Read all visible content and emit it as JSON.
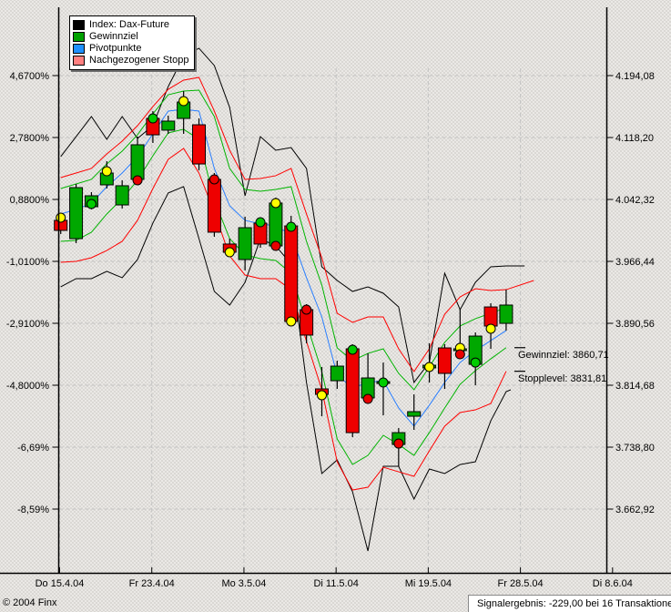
{
  "legend": {
    "items": [
      {
        "label": "Index: Dax-Future",
        "color": "#000000"
      },
      {
        "label": "Gewinnziel",
        "color": "#00a000"
      },
      {
        "label": "Pivotpunkte",
        "color": "#1e90ff"
      },
      {
        "label": "Nachgezogener Stopp",
        "color": "#ff8080"
      }
    ]
  },
  "annotations": [
    {
      "text": "Gewinnziel: 3860,71",
      "value": 3860.71
    },
    {
      "text": "Stopplevel: 3831,81",
      "value": 3831.81
    }
  ],
  "status": {
    "copyright": "© 2004 Finx",
    "signal_result": "Signalergebnis: -229,00 bei 16 Transaktionen"
  },
  "colors": {
    "candle_up": "#00a800",
    "candle_down": "#ee0000",
    "index_line": "#000000",
    "target_line": "#00b400",
    "pivot_line": "#2a7fff",
    "stop_line": "#ff0000",
    "signal_yellow": "#ffff00",
    "signal_green": "#00cc00",
    "signal_red": "#e80000",
    "grid": "#c3c3c3",
    "axis": "#000000"
  },
  "chart_data": {
    "type": "candlestick+line-bands",
    "x_ticks": [
      {
        "label": "Do 15.4.04",
        "day": 0
      },
      {
        "label": "Fr 23.4.04",
        "day": 6
      },
      {
        "label": "Mo 3.5.04",
        "day": 12
      },
      {
        "label": "Di 11.5.04",
        "day": 18
      },
      {
        "label": "Mi 19.5.04",
        "day": 24
      },
      {
        "label": "Fr 28.5.04",
        "day": 30
      },
      {
        "label": "Di 8.6.04",
        "day": 36
      }
    ],
    "y_ticks": [
      {
        "pct": "4,6700%",
        "price": "4.194,08",
        "value": 4194.08
      },
      {
        "pct": "2,7800%",
        "price": "4.118,20",
        "value": 4118.2
      },
      {
        "pct": "0,8800%",
        "price": "4.042,32",
        "value": 4042.32
      },
      {
        "pct": "-1,0100%",
        "price": "3.966,44",
        "value": 3966.44
      },
      {
        "pct": "-2,9100%",
        "price": "3.890,56",
        "value": 3890.56
      },
      {
        "pct": "-4,8000%",
        "price": "3.814,68",
        "value": 3814.68
      },
      {
        "pct": "-6,69%",
        "price": "3.738,80",
        "value": 3738.8
      },
      {
        "pct": "-8,59%",
        "price": "3.662,92",
        "value": 3662.92
      }
    ],
    "ylim": [
      3584,
      4276
    ],
    "candles": [
      [
        4016.7,
        4023.3,
        4000.0,
        4004.4
      ],
      [
        3994.3,
        4061.3,
        3988.8,
        4056.8
      ],
      [
        4033.4,
        4051.3,
        4030.1,
        4046.8
      ],
      [
        4060.2,
        4089.2,
        4055.7,
        4074.7
      ],
      [
        4035.6,
        4065.8,
        4031.2,
        4059.1
      ],
      [
        4066.9,
        4119.4,
        4064.7,
        4109.3
      ],
      [
        4141.6,
        4150.6,
        4111.5,
        4121.5
      ],
      [
        4127.2,
        4145.0,
        4122.7,
        4138.3
      ],
      [
        4141.6,
        4175.1,
        4122.7,
        4161.7
      ],
      [
        4133.8,
        4141.6,
        4078.0,
        4085.8
      ],
      [
        4066.9,
        4074.7,
        3996.6,
        4002.2
      ],
      [
        3987.7,
        3994.3,
        3972.0,
        3977.6
      ],
      [
        3968.7,
        4021.1,
        3955.3,
        4007.7
      ],
      [
        4013.3,
        4018.9,
        3983.2,
        3987.7
      ],
      [
        3985.4,
        4044.6,
        3980.9,
        4037.9
      ],
      [
        4009.9,
        4022.2,
        3888.3,
        3892.8
      ],
      [
        3907.3,
        3914.0,
        3866.0,
        3876.1
      ],
      [
        3810.2,
        3837.0,
        3776.7,
        3803.5
      ],
      [
        3820.2,
        3844.8,
        3810.2,
        3838.1
      ],
      [
        3859.3,
        3864.9,
        3751.0,
        3756.6
      ],
      [
        3799.1,
        3853.7,
        3792.4,
        3823.6
      ],
      [
        3816.9,
        3842.5,
        3777.8,
        3819.1
      ],
      [
        3742.1,
        3762.2,
        3715.3,
        3756.6
      ],
      [
        3776.7,
        3803.5,
        3760.0,
        3782.3
      ],
      [
        3835.9,
        3866.0,
        3818.0,
        3839.2
      ],
      [
        3860.4,
        3864.9,
        3810.2,
        3829.2
      ],
      [
        3857.1,
        3907.3,
        3849.3,
        3859.3
      ],
      [
        3840.3,
        3879.4,
        3814.7,
        3874.9
      ],
      [
        3910.6,
        3915.1,
        3859.3,
        3887.2
      ],
      [
        3890.5,
        3931.9,
        3881.6,
        3912.9
      ]
    ],
    "signals": [
      [
        0,
        4020.0,
        "yellow"
      ],
      [
        2,
        4036.8,
        "green"
      ],
      [
        3,
        4076.9,
        "yellow"
      ],
      [
        5,
        4065.8,
        "red"
      ],
      [
        6,
        4141.6,
        "green"
      ],
      [
        8,
        4162.8,
        "yellow"
      ],
      [
        10,
        4066.9,
        "red"
      ],
      [
        11,
        3977.6,
        "yellow"
      ],
      [
        13,
        4014.4,
        "green"
      ],
      [
        14,
        4037.9,
        "yellow"
      ],
      [
        14,
        3985.4,
        "red"
      ],
      [
        15,
        4008.8,
        "green"
      ],
      [
        15,
        3892.8,
        "yellow"
      ],
      [
        16,
        3907.3,
        "red"
      ],
      [
        17,
        3802.4,
        "yellow"
      ],
      [
        19,
        3858.2,
        "green"
      ],
      [
        20,
        3797.9,
        "red"
      ],
      [
        21,
        3818.0,
        "green"
      ],
      [
        22,
        3743.2,
        "red"
      ],
      [
        24,
        3837.0,
        "yellow"
      ],
      [
        26,
        3860.4,
        "yellow"
      ],
      [
        26,
        3852.6,
        "red"
      ],
      [
        27,
        3842.5,
        "green"
      ],
      [
        28,
        3883.9,
        "yellow"
      ]
    ],
    "series": {
      "index_high": [
        [
          0,
          4094.8
        ],
        [
          1,
          4119.3
        ],
        [
          2,
          4143.9
        ],
        [
          3,
          4116.0
        ],
        [
          4,
          4143.9
        ],
        [
          5,
          4117.1
        ],
        [
          6,
          4132.7
        ],
        [
          7,
          4180.7
        ],
        [
          8,
          4217.5
        ],
        [
          9,
          4227.6
        ],
        [
          10,
          4206.4
        ],
        [
          11,
          4155.0
        ],
        [
          12,
          4046.8
        ],
        [
          13,
          4119.3
        ],
        [
          14,
          4102.6
        ],
        [
          15,
          4105.9
        ],
        [
          16,
          4080.3
        ],
        [
          17,
          3959.8
        ],
        [
          18,
          3943.0
        ],
        [
          19,
          3929.6
        ],
        [
          20,
          3935.2
        ],
        [
          21,
          3927.4
        ],
        [
          22,
          3910.7
        ],
        [
          23,
          3818.1
        ],
        [
          24,
          3842.6
        ],
        [
          25,
          3951.9
        ],
        [
          26,
          3907.3
        ],
        [
          27,
          3940.8
        ],
        [
          28,
          3959.8
        ],
        [
          29,
          3960.9
        ],
        [
          30.2,
          3960.9
        ]
      ],
      "index_low": [
        [
          0,
          3935.2
        ],
        [
          1,
          3945.3
        ],
        [
          2,
          3945.3
        ],
        [
          3,
          3954.2
        ],
        [
          4,
          3946.4
        ],
        [
          5,
          3968.7
        ],
        [
          6,
          4013.4
        ],
        [
          7,
          4050.2
        ],
        [
          8,
          4058.0
        ],
        [
          9,
          3994.3
        ],
        [
          10,
          3929.6
        ],
        [
          11,
          3912.9
        ],
        [
          12,
          3940.8
        ],
        [
          13,
          3994.3
        ],
        [
          14,
          3985.4
        ],
        [
          15,
          3963.2
        ],
        [
          16,
          3818.1
        ],
        [
          17,
          3706.5
        ],
        [
          18,
          3723.2
        ],
        [
          19,
          3684.1
        ],
        [
          20,
          3611.6
        ],
        [
          21,
          3715.3
        ],
        [
          22,
          3715.3
        ],
        [
          23,
          3675.2
        ],
        [
          24,
          3712.0
        ],
        [
          25,
          3706.5
        ],
        [
          26,
          3717.5
        ],
        [
          27,
          3720.9
        ],
        [
          28,
          3771.1
        ],
        [
          29,
          3806.9
        ],
        [
          29.3,
          3809.1
        ]
      ],
      "stop_upper": [
        [
          0,
          4069.1
        ],
        [
          1,
          4074.7
        ],
        [
          2,
          4080.3
        ],
        [
          3,
          4098.1
        ],
        [
          4,
          4113.7
        ],
        [
          5,
          4132.7
        ],
        [
          6,
          4156.1
        ],
        [
          7,
          4177.3
        ],
        [
          8,
          4188.5
        ],
        [
          9,
          4191.9
        ],
        [
          10,
          4150.6
        ],
        [
          11,
          4102.6
        ],
        [
          12,
          4066.9
        ],
        [
          13,
          4068.0
        ],
        [
          14,
          4071.4
        ],
        [
          15,
          4080.3
        ],
        [
          16,
          4024.5
        ],
        [
          17,
          3970.9
        ],
        [
          18,
          3902.8
        ],
        [
          19,
          3891.7
        ],
        [
          20,
          3898.4
        ],
        [
          21,
          3898.4
        ],
        [
          22,
          3859.3
        ],
        [
          23,
          3831.4
        ],
        [
          24,
          3859.3
        ],
        [
          25,
          3901.7
        ],
        [
          26,
          3922.9
        ],
        [
          27,
          3932.9
        ],
        [
          28,
          3930.7
        ],
        [
          29,
          3931.8
        ],
        [
          30.8,
          3943.0
        ]
      ],
      "stop_lower": [
        [
          0,
          3965.3
        ],
        [
          1,
          3966.4
        ],
        [
          2,
          3970.9
        ],
        [
          3,
          3979.8
        ],
        [
          4,
          3991.0
        ],
        [
          5,
          4016.7
        ],
        [
          6,
          4055.7
        ],
        [
          7,
          4091.4
        ],
        [
          8,
          4104.8
        ],
        [
          9,
          4074.7
        ],
        [
          10,
          4026.7
        ],
        [
          11,
          3973.1
        ],
        [
          12,
          3949.7
        ],
        [
          13,
          3945.3
        ],
        [
          14,
          3945.3
        ],
        [
          15,
          3931.8
        ],
        [
          16,
          3868.3
        ],
        [
          17,
          3809.1
        ],
        [
          18,
          3720.9
        ],
        [
          19,
          3686.3
        ],
        [
          20,
          3689.7
        ],
        [
          21,
          3714.2
        ],
        [
          22,
          3708.6
        ],
        [
          23,
          3703.1
        ],
        [
          24,
          3734.3
        ],
        [
          25,
          3764.5
        ],
        [
          26,
          3781.2
        ],
        [
          27,
          3784.5
        ],
        [
          28,
          3792.3
        ],
        [
          29,
          3831.8
        ]
      ],
      "target_upper": [
        [
          0,
          4055.7
        ],
        [
          1,
          4061.3
        ],
        [
          2,
          4066.9
        ],
        [
          3,
          4085.9
        ],
        [
          4,
          4101.5
        ],
        [
          5,
          4121.6
        ],
        [
          6,
          4147.2
        ],
        [
          7,
          4170.6
        ],
        [
          8,
          4175.1
        ],
        [
          9,
          4176.2
        ],
        [
          10,
          4143.9
        ],
        [
          11,
          4080.3
        ],
        [
          12,
          4054.6
        ],
        [
          13,
          4052.4
        ],
        [
          14,
          4054.6
        ],
        [
          15,
          4058.0
        ],
        [
          16,
          3991.0
        ],
        [
          17,
          3937.4
        ],
        [
          18,
          3860.4
        ],
        [
          19,
          3844.8
        ],
        [
          20,
          3853.7
        ],
        [
          21,
          3859.3
        ],
        [
          22,
          3829.2
        ],
        [
          23,
          3809.1
        ],
        [
          24,
          3837.0
        ],
        [
          25,
          3867.2
        ],
        [
          26,
          3887.3
        ],
        [
          27,
          3896.2
        ],
        [
          28,
          3902.9
        ],
        [
          29,
          3909.6
        ]
      ],
      "target_lower": [
        [
          0,
          3991.0
        ],
        [
          1,
          3992.1
        ],
        [
          2,
          4002.2
        ],
        [
          3,
          4024.5
        ],
        [
          4,
          4043.4
        ],
        [
          5,
          4065.8
        ],
        [
          6,
          4095.9
        ],
        [
          7,
          4123.8
        ],
        [
          8,
          4128.3
        ],
        [
          9,
          4116.0
        ],
        [
          10,
          4041.2
        ],
        [
          11,
          3994.3
        ],
        [
          12,
          3974.3
        ],
        [
          13,
          3969.8
        ],
        [
          14,
          3967.6
        ],
        [
          15,
          3951.9
        ],
        [
          16,
          3890.6
        ],
        [
          17,
          3831.4
        ],
        [
          18,
          3748.8
        ],
        [
          19,
          3717.6
        ],
        [
          20,
          3728.7
        ],
        [
          21,
          3753.3
        ],
        [
          22,
          3742.1
        ],
        [
          23,
          3728.7
        ],
        [
          24,
          3756.7
        ],
        [
          25,
          3786.8
        ],
        [
          26,
          3815.8
        ],
        [
          27,
          3832.5
        ],
        [
          28,
          3847.0
        ],
        [
          29,
          3860.7
        ]
      ],
      "pivot": [
        [
          0,
          4024.5
        ],
        [
          1,
          4030.1
        ],
        [
          2,
          4037.9
        ],
        [
          3,
          4057.9
        ],
        [
          4,
          4074.7
        ],
        [
          5,
          4094.8
        ],
        [
          6,
          4122.7
        ],
        [
          7,
          4150.6
        ],
        [
          8,
          4152.8
        ],
        [
          9,
          4150.6
        ],
        [
          10,
          4080.3
        ],
        [
          11,
          4034.5
        ],
        [
          12,
          4016.7
        ],
        [
          13,
          4012.3
        ],
        [
          14,
          4010.0
        ],
        [
          15,
          3998.9
        ],
        [
          16,
          3946.4
        ],
        [
          17,
          3898.4
        ],
        [
          18,
          3827.0
        ],
        [
          19,
          3811.4
        ],
        [
          20,
          3818.1
        ],
        [
          21,
          3820.3
        ],
        [
          22,
          3786.8
        ],
        [
          23,
          3764.5
        ],
        [
          24,
          3790.2
        ],
        [
          25,
          3818.1
        ],
        [
          26,
          3842.6
        ],
        [
          27,
          3857.1
        ],
        [
          28,
          3869.4
        ],
        [
          29,
          3881.7
        ]
      ]
    }
  }
}
